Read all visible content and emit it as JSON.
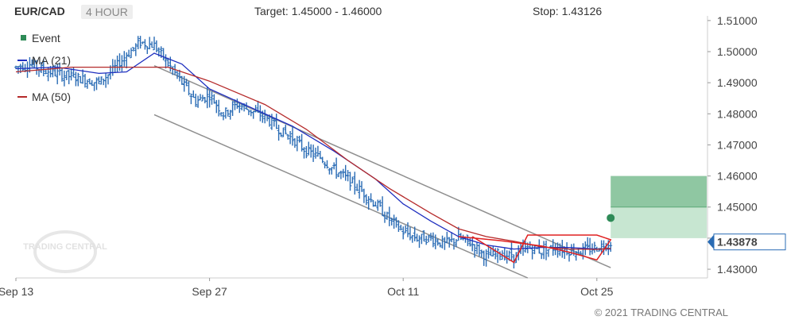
{
  "header": {
    "symbol": "EUR/CAD",
    "timeframe": "4 HOUR",
    "target": "Target: 1.45000 - 1.46000",
    "stop": "Stop: 1.43126"
  },
  "footer": {
    "copyright": "© 2021 TRADING CENTRAL"
  },
  "watermark": "TRADING CENTRAL",
  "colors": {
    "price": "#2a6cb5",
    "ma21": "#1f2fbf",
    "ma50": "#b52a2a",
    "channel": "#8f8f8f",
    "pattern": "#e02020",
    "target_zone_dark": "#8fc7a2",
    "target_zone_light": "#c7e6d1",
    "event": "#2e8b57",
    "last_price_tag": "#2a6cb5"
  },
  "chart_data": {
    "type": "ohlc",
    "title": "",
    "y_axis": {
      "ticks": [
        "1.51000",
        "1.50000",
        "1.49000",
        "1.48000",
        "1.47000",
        "1.46000",
        "1.45000",
        "1.44000",
        "1.43000"
      ],
      "ylim": [
        1.4272,
        1.5115
      ]
    },
    "x_axis": {
      "ticks": [
        "Sep 13",
        "Sep 27",
        "Oct 11",
        "Oct 25"
      ],
      "xlim": [
        "2021-09-13",
        "2021-11-02"
      ]
    },
    "last_price": "1.43878",
    "legend": [
      "Event",
      "MA (21)",
      "MA (50)"
    ],
    "target_zone": {
      "from": 1.44,
      "mid": 1.45,
      "to": 1.46,
      "start": "2021-10-26"
    },
    "stop": 1.43126,
    "event_marker": {
      "date": "2021-10-26",
      "value": 1.4465
    },
    "channel": {
      "upper": [
        [
          "2021-09-23",
          1.4955
        ],
        [
          "2021-10-26",
          1.4305
        ]
      ],
      "lower": [
        [
          "2021-09-23",
          1.4797
        ],
        [
          "2021-10-20",
          1.4272
        ]
      ]
    },
    "pattern": [
      [
        "2021-10-16",
        1.4405
      ],
      [
        "2021-10-19",
        1.4322
      ],
      [
        "2021-10-20",
        1.441
      ],
      [
        "2021-10-25",
        1.441
      ],
      [
        "2021-10-26",
        1.4395
      ],
      [
        "2021-10-25",
        1.433
      ],
      [
        "2021-10-23",
        1.4355
      ],
      [
        "2021-10-21",
        1.4375
      ],
      [
        "2021-10-18",
        1.4392
      ],
      [
        "2021-10-15",
        1.4405
      ]
    ],
    "series": [
      {
        "name": "Price",
        "x": [
          "2021-09-13",
          "2021-09-14",
          "2021-09-15",
          "2021-09-16",
          "2021-09-17",
          "2021-09-18",
          "2021-09-19",
          "2021-09-20",
          "2021-09-21",
          "2021-09-22",
          "2021-09-23",
          "2021-09-24",
          "2021-09-25",
          "2021-09-26",
          "2021-09-27",
          "2021-09-28",
          "2021-09-29",
          "2021-09-30",
          "2021-10-01",
          "2021-10-02",
          "2021-10-03",
          "2021-10-04",
          "2021-10-05",
          "2021-10-06",
          "2021-10-07",
          "2021-10-08",
          "2021-10-09",
          "2021-10-10",
          "2021-10-11",
          "2021-10-12",
          "2021-10-13",
          "2021-10-14",
          "2021-10-15",
          "2021-10-16",
          "2021-10-17",
          "2021-10-18",
          "2021-10-19",
          "2021-10-20",
          "2021-10-21",
          "2021-10-22",
          "2021-10-23",
          "2021-10-24",
          "2021-10-25",
          "2021-10-26"
        ],
        "y": [
          1.495,
          1.496,
          1.494,
          1.493,
          1.492,
          1.491,
          1.49,
          1.494,
          1.499,
          1.503,
          1.502,
          1.496,
          1.49,
          1.484,
          1.486,
          1.48,
          1.483,
          1.481,
          1.479,
          1.475,
          1.472,
          1.468,
          1.466,
          1.462,
          1.459,
          1.455,
          1.451,
          1.446,
          1.442,
          1.44,
          1.44,
          1.438,
          1.44,
          1.438,
          1.434,
          1.435,
          1.434,
          1.437,
          1.436,
          1.437,
          1.436,
          1.436,
          1.437,
          1.4388
        ]
      },
      {
        "name": "MA (21)",
        "x": [
          "2021-09-13",
          "2021-09-16",
          "2021-09-19",
          "2021-09-21",
          "2021-09-23",
          "2021-09-25",
          "2021-09-27",
          "2021-09-30",
          "2021-10-03",
          "2021-10-06",
          "2021-10-09",
          "2021-10-11",
          "2021-10-13",
          "2021-10-15",
          "2021-10-17",
          "2021-10-19",
          "2021-10-21",
          "2021-10-23",
          "2021-10-25",
          "2021-10-26"
        ],
        "y": [
          1.4945,
          1.495,
          1.493,
          1.4935,
          1.4995,
          1.496,
          1.488,
          1.482,
          1.476,
          1.468,
          1.459,
          1.451,
          1.4455,
          1.4405,
          1.4378,
          1.4365,
          1.437,
          1.437,
          1.4365,
          1.4365
        ]
      },
      {
        "name": "MA (50)",
        "x": [
          "2021-09-13",
          "2021-09-17",
          "2021-09-21",
          "2021-09-24",
          "2021-09-27",
          "2021-10-01",
          "2021-10-04",
          "2021-10-07",
          "2021-10-10",
          "2021-10-13",
          "2021-10-15",
          "2021-10-17",
          "2021-10-19",
          "2021-10-21",
          "2021-10-23",
          "2021-10-25",
          "2021-10-26"
        ],
        "y": [
          1.4935,
          1.495,
          1.495,
          1.495,
          1.4905,
          1.483,
          1.475,
          1.465,
          1.456,
          1.448,
          1.443,
          1.4405,
          1.439,
          1.4372,
          1.4365,
          1.4364,
          1.4367
        ]
      }
    ]
  }
}
